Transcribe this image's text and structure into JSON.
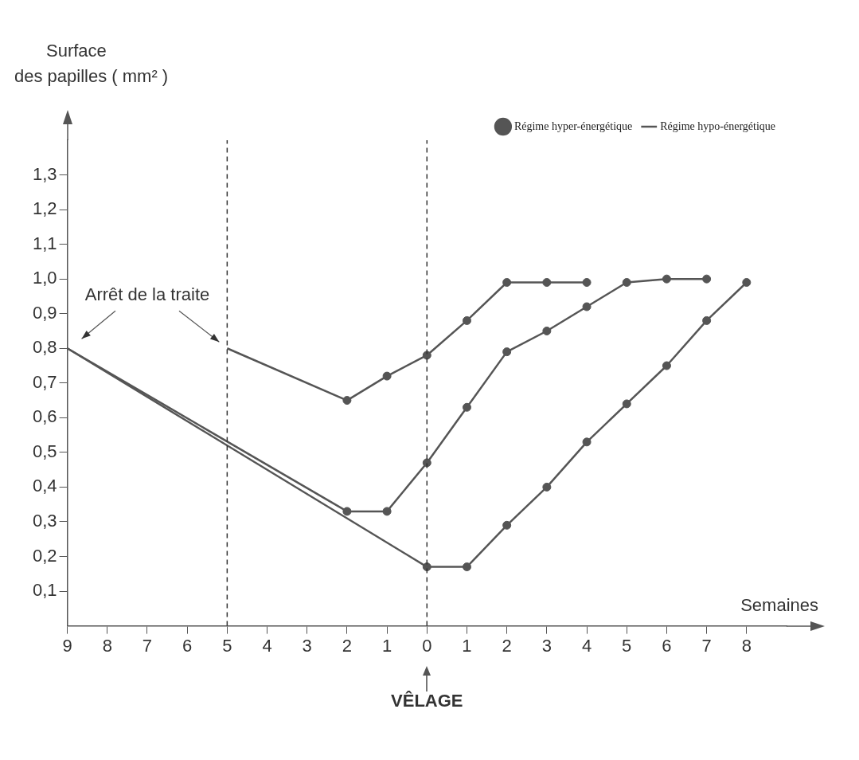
{
  "chart_data": {
    "type": "line",
    "xlabel": "Semaines",
    "ylabel": "Surface des papilles ( mm² )",
    "xlim": [
      -9,
      9
    ],
    "ylim": [
      0,
      1.4
    ],
    "xticks": [
      {
        "value": -9,
        "label": "9"
      },
      {
        "value": -8,
        "label": "8"
      },
      {
        "value": -7,
        "label": "7"
      },
      {
        "value": -6,
        "label": "6"
      },
      {
        "value": -5,
        "label": "5"
      },
      {
        "value": -4,
        "label": "4"
      },
      {
        "value": -3,
        "label": "3"
      },
      {
        "value": -2,
        "label": "2"
      },
      {
        "value": -1,
        "label": "1"
      },
      0,
      1,
      2,
      3,
      4,
      5,
      6,
      7,
      8
    ],
    "yticks": [
      {
        "value": 0.1,
        "label": "0,1"
      },
      {
        "value": 0.2,
        "label": "0,2"
      },
      {
        "value": 0.3,
        "label": "0,3"
      },
      {
        "value": 0.4,
        "label": "0,4"
      },
      {
        "value": 0.5,
        "label": "0,5"
      },
      {
        "value": 0.6,
        "label": "0,6"
      },
      {
        "value": 0.7,
        "label": "0,7"
      },
      {
        "value": 0.8,
        "label": "0,8"
      },
      {
        "value": 0.9,
        "label": "0,9"
      },
      {
        "value": 1.0,
        "label": "1,0"
      },
      {
        "value": 1.1,
        "label": "1,1"
      },
      {
        "value": 1.2,
        "label": "1,2"
      },
      {
        "value": 1.3,
        "label": "1,3"
      }
    ],
    "grid": false,
    "legend": "top right",
    "series": [
      {
        "name": "Régime hyper-énergétique",
        "color": "#555555",
        "marker": "circle",
        "x": [
          -2,
          -1,
          0,
          1,
          2,
          3,
          4
        ],
        "values": [
          0.65,
          0.72,
          0.78,
          0.88,
          0.99,
          0.99,
          0.99
        ]
      },
      {
        "name": "Régime hypo-énergétique",
        "color": "#555555",
        "x": [
          -9,
          0
        ],
        "values": [
          0.8,
          0.17
        ]
      },
      {
        "color": "#555555",
        "x": [
          -5,
          -2
        ],
        "values": [
          0.8,
          0.65
        ]
      },
      {
        "color": "#555555",
        "x": [
          -9,
          -2
        ],
        "values": [
          0.8,
          0.33
        ]
      },
      {
        "color": "#555555",
        "marker": "circle",
        "x": [
          -2,
          -1,
          0,
          1,
          2,
          3,
          4,
          5,
          6,
          7
        ],
        "values": [
          0.33,
          0.33,
          0.47,
          0.63,
          0.79,
          0.85,
          0.92,
          0.99,
          1.0,
          1.0
        ]
      },
      {
        "color": "#555555",
        "marker": "circle",
        "x": [
          0,
          1,
          2,
          3,
          4,
          5,
          6,
          7,
          8
        ],
        "values": [
          0.17,
          0.17,
          0.29,
          0.4,
          0.53,
          0.64,
          0.75,
          0.88,
          0.99
        ]
      }
    ],
    "ref_lines": [
      {
        "axis": "x",
        "value": -5,
        "line_style": "dashed",
        "color": "#333333"
      },
      {
        "axis": "x",
        "value": 0,
        "line_style": "dashed",
        "color": "#333333"
      }
    ],
    "annotations": [
      {
        "text": "Arrêt de la traite",
        "x": -5,
        "y": 0.8
      },
      "VÊLAGE"
    ]
  }
}
